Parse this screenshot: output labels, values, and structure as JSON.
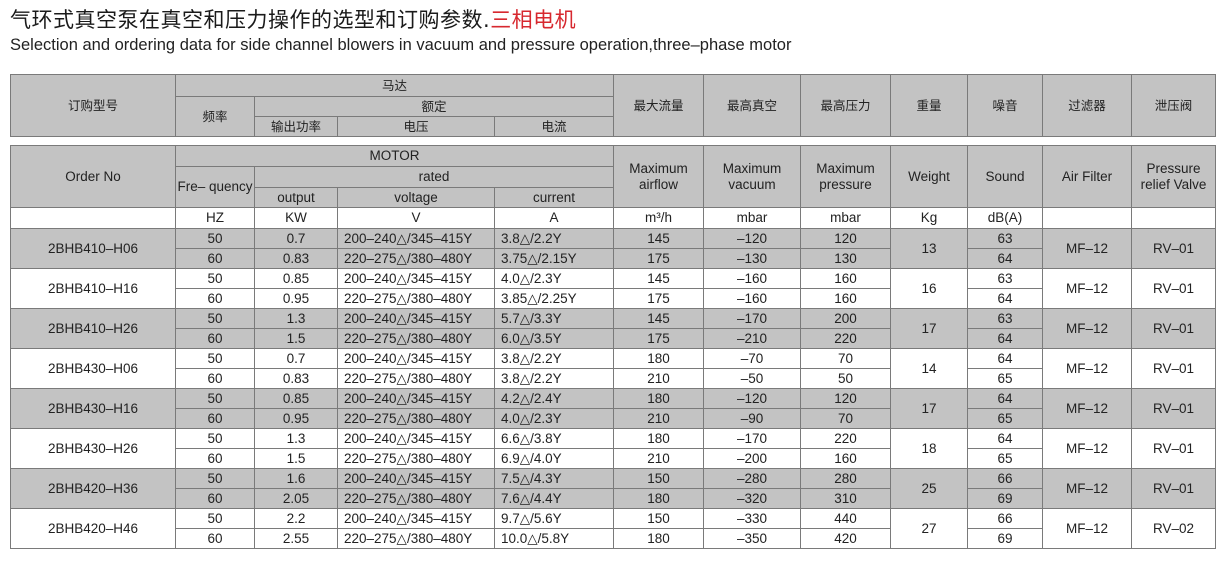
{
  "title": {
    "cn_main": "气环式真空泵在真空和压力操作的选型和订购参数.",
    "cn_highlight": "三相电机",
    "en": "Selection and ordering data for side channel blowers in vacuum and pressure operation,three-phase motor",
    "highlight_color": "#d7282f"
  },
  "header_cn": {
    "order_no": "订购型号",
    "motor": "马达",
    "frequency": "频率",
    "rated": "额定",
    "output": "输出功率",
    "voltage": "电压",
    "current": "电流",
    "max_airflow": "最大流量",
    "max_vacuum": "最高真空",
    "max_pressure": "最高压力",
    "weight": "重量",
    "sound": "噪音",
    "air_filter": "过滤器",
    "relief_valve": "泄压阀"
  },
  "header_en": {
    "order_no": "Order No",
    "motor": "MOTOR",
    "frequency": "Fre– quency",
    "rated": "rated",
    "output": "output",
    "voltage": "voltage",
    "current": "current",
    "max_airflow": "Maximum airflow",
    "max_vacuum": "Maximum vacuum",
    "max_pressure": "Maximum pressure",
    "weight": "Weight",
    "sound": "Sound",
    "air_filter": "Air Filter",
    "relief_valve": "Pressure relief Valve"
  },
  "units": {
    "frequency": "HZ",
    "output": "KW",
    "voltage": "V",
    "current": "A",
    "airflow": "m³/h",
    "vacuum": "mbar",
    "pressure": "mbar",
    "weight": "Kg",
    "sound": "dB(A)"
  },
  "colors": {
    "shade": "#c3c3c3",
    "border": "#7a7a7a"
  },
  "rows": [
    {
      "model": "2BHB410-H06",
      "weight": "13",
      "filter": "MF-12",
      "valve": "RV-01",
      "r50": {
        "freq": "50",
        "output": "0.7",
        "voltage": "200-240△/345-415Y",
        "current": "3.8△/2.2Y",
        "airflow": "145",
        "vacuum": "-120",
        "pressure": "120",
        "sound": "63"
      },
      "r60": {
        "freq": "60",
        "output": "0.83",
        "voltage": "220-275△/380-480Y",
        "current": "3.75△/2.15Y",
        "airflow": "175",
        "vacuum": "-130",
        "pressure": "130",
        "sound": "64"
      }
    },
    {
      "model": "2BHB410-H16",
      "weight": "16",
      "filter": "MF-12",
      "valve": "RV-01",
      "r50": {
        "freq": "50",
        "output": "0.85",
        "voltage": "200-240△/345-415Y",
        "current": "4.0△/2.3Y",
        "airflow": "145",
        "vacuum": "-160",
        "pressure": "160",
        "sound": "63"
      },
      "r60": {
        "freq": "60",
        "output": "0.95",
        "voltage": "220-275△/380-480Y",
        "current": "3.85△/2.25Y",
        "airflow": "175",
        "vacuum": "-160",
        "pressure": "160",
        "sound": "64"
      }
    },
    {
      "model": "2BHB410-H26",
      "weight": "17",
      "filter": "MF-12",
      "valve": "RV-01",
      "r50": {
        "freq": "50",
        "output": "1.3",
        "voltage": "200-240△/345-415Y",
        "current": "5.7△/3.3Y",
        "airflow": "145",
        "vacuum": "-170",
        "pressure": "200",
        "sound": "63"
      },
      "r60": {
        "freq": "60",
        "output": "1.5",
        "voltage": "220-275△/380-480Y",
        "current": "6.0△/3.5Y",
        "airflow": "175",
        "vacuum": "-210",
        "pressure": "220",
        "sound": "64"
      }
    },
    {
      "model": "2BHB430-H06",
      "weight": "14",
      "filter": "MF-12",
      "valve": "RV-01",
      "r50": {
        "freq": "50",
        "output": "0.7",
        "voltage": "200-240△/345-415Y",
        "current": "3.8△/2.2Y",
        "airflow": "180",
        "vacuum": "-70",
        "pressure": "70",
        "sound": "64"
      },
      "r60": {
        "freq": "60",
        "output": "0.83",
        "voltage": "220-275△/380-480Y",
        "current": "3.8△/2.2Y",
        "airflow": "210",
        "vacuum": "-50",
        "pressure": "50",
        "sound": "65"
      }
    },
    {
      "model": "2BHB430-H16",
      "weight": "17",
      "filter": "MF-12",
      "valve": "RV-01",
      "r50": {
        "freq": "50",
        "output": "0.85",
        "voltage": "200-240△/345-415Y",
        "current": "4.2△/2.4Y",
        "airflow": "180",
        "vacuum": "-120",
        "pressure": "120",
        "sound": "64"
      },
      "r60": {
        "freq": "60",
        "output": "0.95",
        "voltage": "220-275△/380-480Y",
        "current": "4.0△/2.3Y",
        "airflow": "210",
        "vacuum": "-90",
        "pressure": "70",
        "sound": "65"
      }
    },
    {
      "model": "2BHB430-H26",
      "weight": "18",
      "filter": "MF-12",
      "valve": "RV-01",
      "r50": {
        "freq": "50",
        "output": "1.3",
        "voltage": "200-240△/345-415Y",
        "current": "6.6△/3.8Y",
        "airflow": "180",
        "vacuum": "-170",
        "pressure": "220",
        "sound": "64"
      },
      "r60": {
        "freq": "60",
        "output": "1.5",
        "voltage": "220-275△/380-480Y",
        "current": "6.9△/4.0Y",
        "airflow": "210",
        "vacuum": "-200",
        "pressure": "160",
        "sound": "65"
      }
    },
    {
      "model": "2BHB420-H36",
      "weight": "25",
      "filter": "MF-12",
      "valve": "RV-01",
      "r50": {
        "freq": "50",
        "output": "1.6",
        "voltage": "200-240△/345-415Y",
        "current": "7.5△/4.3Y",
        "airflow": "150",
        "vacuum": "-280",
        "pressure": "280",
        "sound": "66"
      },
      "r60": {
        "freq": "60",
        "output": "2.05",
        "voltage": "220-275△/380-480Y",
        "current": "7.6△/4.4Y",
        "airflow": "180",
        "vacuum": "-320",
        "pressure": "310",
        "sound": "69"
      }
    },
    {
      "model": "2BHB420-H46",
      "weight": "27",
      "filter": "MF-12",
      "valve": "RV-02",
      "r50": {
        "freq": "50",
        "output": "2.2",
        "voltage": "200-240△/345-415Y",
        "current": "9.7△/5.6Y",
        "airflow": "150",
        "vacuum": "-330",
        "pressure": "440",
        "sound": "66"
      },
      "r60": {
        "freq": "60",
        "output": "2.55",
        "voltage": "220-275△/380-480Y",
        "current": "10.0△/5.8Y",
        "airflow": "180",
        "vacuum": "-350",
        "pressure": "420",
        "sound": "69"
      }
    }
  ]
}
